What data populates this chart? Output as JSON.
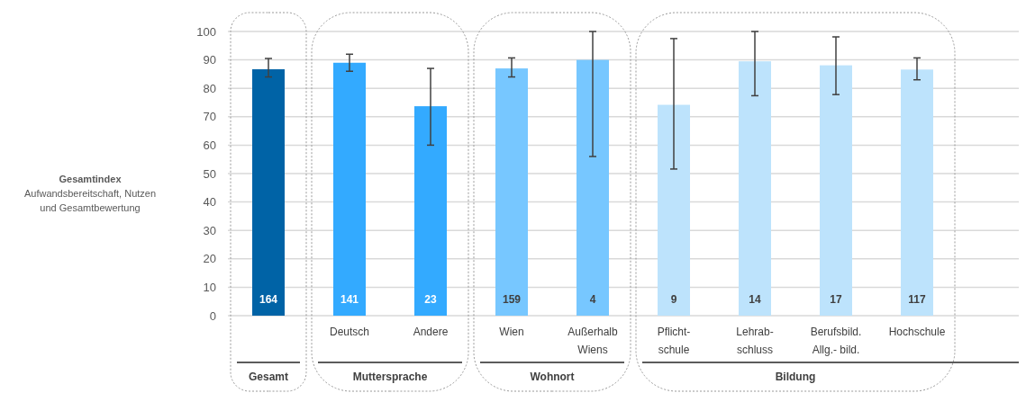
{
  "chart_data": {
    "type": "bar",
    "ylabel": "Gesamtindex\nAufwandsbereitschaft, Nutzen\nund Gesamtbewertung",
    "categories": [
      null,
      "Deutsch",
      "Andere",
      "Wien",
      "Außerhalb\nWiens",
      "Pflicht-\nschule",
      "Lehrab-\nschluss",
      "Berufsbild.\nAllg.- bild.",
      "Hochschule"
    ],
    "values": [
      86.7,
      89,
      73.7,
      87,
      90,
      74.2,
      89.5,
      88.1,
      86.6
    ],
    "colors": [
      "#0063a6",
      "#33aaff",
      "#33aaff",
      "#77c7ff",
      "#77c7ff",
      "#bde3fc",
      "#bde3fc",
      "#bde3fc",
      "#bde3fc"
    ],
    "errors": [
      [
        84,
        90.5
      ],
      [
        86,
        92
      ],
      [
        60,
        87
      ],
      [
        84,
        90.7
      ],
      [
        56,
        100
      ],
      [
        51.6,
        97.5
      ],
      [
        77.4,
        100
      ],
      [
        77.8,
        98.1
      ],
      [
        83,
        90.7
      ]
    ],
    "annotations": [
      "Gesamt",
      "Muttersprache",
      "Wohnort",
      "Bildung",
      {
        "text": "164",
        "y": 0
      },
      {
        "text": "141",
        "x": "Deutsch",
        "y": 0
      },
      {
        "text": "23",
        "x": "Andere",
        "y": 0
      },
      {
        "text": "159",
        "x": "Wien",
        "y": 0
      },
      {
        "text": "4",
        "x": "Außerhalb\nWiens",
        "y": 0
      },
      {
        "text": "9",
        "x": "Pflicht-\nschule",
        "y": 0
      },
      {
        "text": "14",
        "x": "Lehrab-\nschluss",
        "y": 0
      },
      {
        "text": "17",
        "x": "Berufsbild.\nAllg.- bild.",
        "y": 0
      },
      {
        "text": "117",
        "x": "Hochschule",
        "y": 0
      }
    ],
    "ylim": [
      0,
      100
    ],
    "yticks": [
      0,
      10,
      20,
      30,
      40,
      50,
      60,
      70,
      80,
      90,
      100
    ],
    "grid": "y"
  }
}
